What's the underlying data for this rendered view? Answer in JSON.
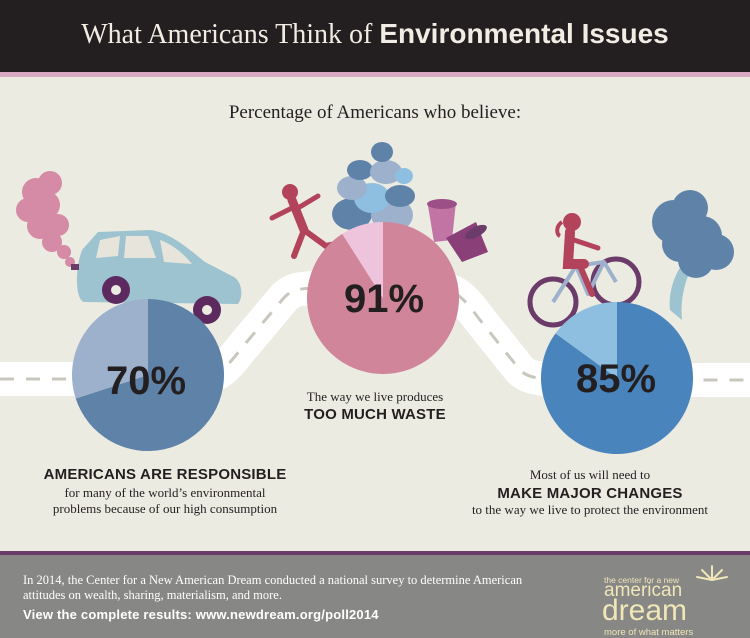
{
  "header": {
    "title_part1": "What Americans Think of ",
    "title_part2": "Environmental Issues"
  },
  "chart_data": {
    "type": "pie",
    "subtitle": "Percentage of Americans who believe:",
    "series": [
      {
        "value": 70,
        "label": "70%",
        "caption_bold": "AMERICANS ARE RESPONSIBLE",
        "caption_text": [
          "for many of the world’s environmental",
          "problems because of our high consumption"
        ],
        "colors": [
          "#5e82a8",
          "#9eb1cc"
        ]
      },
      {
        "value": 91,
        "label": "91%",
        "caption_text": [
          "The way we live produces"
        ],
        "caption_bold": "TOO MUCH WASTE",
        "colors": [
          "#d0859a",
          "#eec4dd"
        ]
      },
      {
        "value": 85,
        "label": "85%",
        "caption_text": [
          "Most of us will need to"
        ],
        "caption_bold": "MAKE MAJOR CHANGES",
        "caption_text_after": "to the way we live to protect the environment",
        "colors": [
          "#4a84bd",
          "#8fbfe0"
        ]
      }
    ]
  },
  "footer": {
    "description": "In 2014, the Center for a New American Dream conducted a national survey to determine American attitudes on wealth, sharing, materialism, and more.",
    "link": "View the complete results: www.newdream.org/poll2014"
  },
  "logo": {
    "line1": "the center for a new",
    "line2": "american",
    "line3": "dream",
    "line4": "more of what matters"
  },
  "colors": {
    "header_bg": "#231f20",
    "background": "#ecebe2",
    "road": "#ffffff",
    "footer_bg": "#878786",
    "accent_purple": "#6b3b6a"
  }
}
